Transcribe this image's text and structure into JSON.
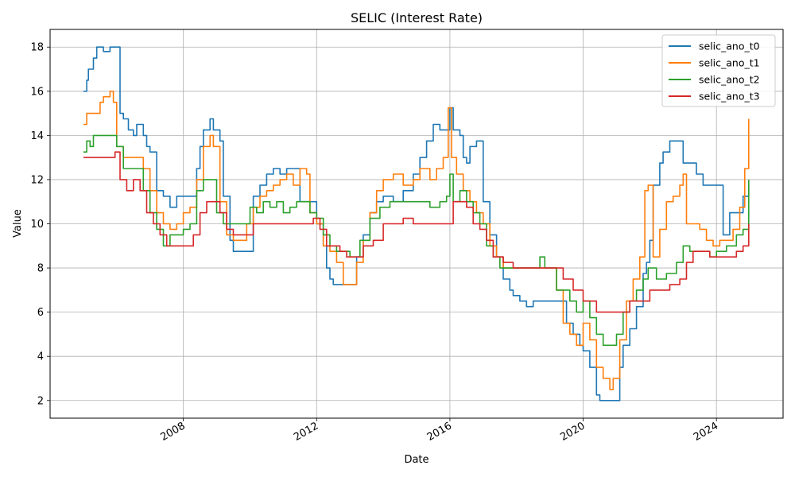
{
  "chart_data": {
    "type": "line",
    "title": "SELIC (Interest Rate)",
    "xlabel": "Date",
    "ylabel": "Value",
    "xlim": [
      2004.0,
      2026.0
    ],
    "ylim": [
      1.2,
      18.8
    ],
    "xticks": [
      2008,
      2012,
      2016,
      2020,
      2024
    ],
    "xtick_labels": [
      "2008",
      "2012",
      "2016",
      "2020",
      "2024"
    ],
    "yticks": [
      2,
      4,
      6,
      8,
      10,
      12,
      14,
      16,
      18
    ],
    "ytick_labels": [
      "2",
      "4",
      "6",
      "8",
      "10",
      "12",
      "14",
      "16",
      "18"
    ],
    "grid": true,
    "legend_position": "top-right",
    "series": [
      {
        "name": "selic_ano_t0",
        "color": "#1f77b4",
        "x": [
          2005.0,
          2005.1,
          2005.15,
          2005.2,
          2005.3,
          2005.4,
          2005.5,
          2005.6,
          2005.8,
          2006.0,
          2006.1,
          2006.2,
          2006.35,
          2006.5,
          2006.6,
          2006.8,
          2006.9,
          2007.0,
          2007.2,
          2007.4,
          2007.6,
          2007.8,
          2008.0,
          2008.2,
          2008.4,
          2008.5,
          2008.6,
          2008.8,
          2008.9,
          2009.1,
          2009.2,
          2009.4,
          2009.5,
          2009.7,
          2009.9,
          2010.1,
          2010.3,
          2010.5,
          2010.7,
          2010.9,
          2011.1,
          2011.3,
          2011.5,
          2011.7,
          2011.8,
          2012.0,
          2012.2,
          2012.3,
          2012.4,
          2012.5,
          2012.7,
          2012.9,
          2013.2,
          2013.4,
          2013.6,
          2013.8,
          2014.0,
          2014.3,
          2014.6,
          2014.9,
          2015.1,
          2015.3,
          2015.5,
          2015.7,
          2015.9,
          2016.0,
          2016.1,
          2016.3,
          2016.4,
          2016.5,
          2016.6,
          2016.8,
          2016.9,
          2017.0,
          2017.2,
          2017.4,
          2017.6,
          2017.8,
          2017.9,
          2018.1,
          2018.3,
          2018.5,
          2018.7,
          2019.0,
          2019.2,
          2019.3,
          2019.5,
          2019.7,
          2019.9,
          2020.0,
          2020.2,
          2020.4,
          2020.5,
          2020.7,
          2020.9,
          2021.0,
          2021.1,
          2021.2,
          2021.4,
          2021.6,
          2021.8,
          2021.9,
          2022.0,
          2022.1,
          2022.3,
          2022.4,
          2022.6,
          2022.8,
          2022.9,
          2023.0,
          2023.2,
          2023.4,
          2023.6,
          2023.8,
          2024.0,
          2024.2,
          2024.4,
          2024.6,
          2024.8,
          2024.97
        ],
        "values": [
          16.0,
          16.5,
          17.0,
          17.0,
          17.5,
          18.0,
          18.0,
          17.8,
          18.0,
          18.0,
          15.0,
          14.75,
          14.25,
          14.0,
          14.5,
          14.0,
          13.5,
          13.25,
          11.5,
          11.25,
          10.75,
          11.25,
          11.25,
          11.25,
          12.5,
          13.5,
          14.25,
          14.75,
          14.25,
          13.75,
          11.25,
          9.25,
          8.75,
          8.75,
          8.75,
          11.25,
          11.75,
          12.25,
          12.5,
          12.25,
          12.5,
          12.5,
          11.0,
          11.0,
          11.0,
          10.0,
          9.0,
          8.0,
          7.5,
          7.25,
          7.25,
          7.25,
          8.5,
          9.5,
          10.5,
          11.0,
          11.25,
          11.0,
          11.5,
          12.25,
          13.0,
          13.75,
          14.5,
          14.25,
          14.25,
          15.25,
          14.25,
          14.0,
          13.0,
          12.75,
          13.5,
          13.75,
          13.75,
          11.0,
          9.5,
          8.5,
          7.5,
          7.0,
          6.75,
          6.5,
          6.25,
          6.5,
          6.5,
          6.5,
          6.5,
          6.5,
          5.5,
          5.0,
          4.5,
          4.25,
          3.5,
          2.25,
          2.0,
          2.0,
          2.0,
          2.0,
          3.5,
          4.5,
          5.25,
          6.25,
          7.75,
          8.25,
          9.25,
          11.75,
          12.75,
          13.25,
          13.75,
          13.75,
          13.75,
          12.75,
          12.75,
          12.25,
          11.75,
          11.75,
          11.75,
          9.5,
          10.5,
          10.5,
          11.25,
          11.75
        ]
      },
      {
        "name": "selic_ano_t1",
        "color": "#ff7f0e",
        "x": [
          2005.0,
          2005.1,
          2005.3,
          2005.5,
          2005.6,
          2005.8,
          2005.9,
          2006.0,
          2006.2,
          2006.4,
          2006.6,
          2006.8,
          2007.0,
          2007.2,
          2007.4,
          2007.6,
          2007.8,
          2008.0,
          2008.2,
          2008.4,
          2008.6,
          2008.8,
          2008.9,
          2009.1,
          2009.3,
          2009.5,
          2009.7,
          2009.9,
          2010.1,
          2010.3,
          2010.5,
          2010.7,
          2010.9,
          2011.1,
          2011.3,
          2011.5,
          2011.7,
          2011.8,
          2012.0,
          2012.2,
          2012.4,
          2012.6,
          2012.8,
          2013.0,
          2013.2,
          2013.4,
          2013.6,
          2013.8,
          2014.0,
          2014.3,
          2014.6,
          2014.9,
          2015.1,
          2015.4,
          2015.6,
          2015.8,
          2015.95,
          2016.05,
          2016.2,
          2016.4,
          2016.6,
          2016.8,
          2017.0,
          2017.2,
          2017.4,
          2017.6,
          2017.9,
          2018.2,
          2018.5,
          2018.8,
          2019.0,
          2019.2,
          2019.4,
          2019.6,
          2019.8,
          2020.0,
          2020.2,
          2020.4,
          2020.6,
          2020.8,
          2020.9,
          2021.1,
          2021.3,
          2021.5,
          2021.7,
          2021.85,
          2021.95,
          2022.1,
          2022.3,
          2022.5,
          2022.7,
          2022.9,
          2023.0,
          2023.1,
          2023.3,
          2023.5,
          2023.7,
          2023.9,
          2024.1,
          2024.3,
          2024.5,
          2024.7,
          2024.85,
          2024.97
        ],
        "values": [
          14.5,
          15.0,
          15.0,
          15.5,
          15.75,
          16.0,
          15.5,
          13.5,
          13.0,
          13.0,
          13.0,
          12.5,
          11.5,
          10.5,
          10.0,
          9.75,
          10.0,
          10.5,
          10.75,
          12.0,
          13.5,
          14.0,
          13.5,
          11.0,
          9.5,
          9.25,
          9.25,
          10.0,
          10.75,
          11.25,
          11.5,
          11.75,
          12.0,
          12.25,
          11.75,
          12.5,
          12.25,
          10.5,
          10.0,
          9.0,
          8.75,
          8.25,
          7.25,
          7.25,
          8.25,
          9.25,
          10.5,
          11.5,
          12.0,
          12.25,
          11.75,
          12.0,
          12.5,
          12.0,
          12.5,
          13.0,
          15.25,
          13.0,
          12.25,
          11.5,
          11.0,
          10.5,
          10.0,
          9.0,
          8.5,
          8.0,
          8.0,
          8.0,
          8.0,
          8.0,
          8.0,
          7.0,
          5.5,
          5.0,
          4.5,
          5.5,
          4.75,
          3.5,
          3.0,
          2.5,
          3.0,
          4.75,
          6.5,
          7.5,
          8.5,
          11.5,
          11.75,
          8.5,
          9.75,
          11.0,
          11.25,
          11.75,
          12.25,
          10.0,
          10.0,
          9.75,
          9.25,
          9.0,
          9.25,
          9.25,
          9.75,
          10.75,
          12.5,
          14.75
        ]
      },
      {
        "name": "selic_ano_t2",
        "color": "#2ca02c",
        "x": [
          2005.0,
          2005.1,
          2005.2,
          2005.3,
          2005.5,
          2005.7,
          2005.9,
          2006.0,
          2006.2,
          2006.4,
          2006.6,
          2006.8,
          2007.0,
          2007.2,
          2007.4,
          2007.6,
          2007.8,
          2008.0,
          2008.2,
          2008.4,
          2008.6,
          2008.8,
          2009.0,
          2009.2,
          2009.4,
          2009.6,
          2009.8,
          2010.0,
          2010.2,
          2010.4,
          2010.6,
          2010.8,
          2011.0,
          2011.2,
          2011.4,
          2011.6,
          2011.8,
          2012.0,
          2012.2,
          2012.4,
          2012.6,
          2012.8,
          2013.0,
          2013.3,
          2013.6,
          2013.9,
          2014.2,
          2014.5,
          2014.8,
          2015.1,
          2015.4,
          2015.7,
          2015.9,
          2016.0,
          2016.1,
          2016.3,
          2016.5,
          2016.7,
          2016.9,
          2017.1,
          2017.3,
          2017.5,
          2017.8,
          2018.1,
          2018.4,
          2018.7,
          2018.85,
          2019.0,
          2019.2,
          2019.4,
          2019.6,
          2019.8,
          2020.0,
          2020.2,
          2020.4,
          2020.6,
          2020.8,
          2021.0,
          2021.2,
          2021.4,
          2021.6,
          2021.8,
          2021.95,
          2022.2,
          2022.5,
          2022.8,
          2023.0,
          2023.2,
          2023.5,
          2023.8,
          2024.0,
          2024.3,
          2024.6,
          2024.8,
          2024.97
        ],
        "values": [
          13.25,
          13.75,
          13.5,
          14.0,
          14.0,
          14.0,
          14.0,
          13.5,
          12.5,
          12.5,
          12.5,
          11.5,
          10.5,
          9.75,
          9.0,
          9.5,
          9.5,
          9.75,
          10.0,
          11.5,
          12.0,
          12.0,
          10.5,
          10.0,
          10.0,
          10.0,
          10.0,
          10.75,
          10.5,
          11.0,
          10.75,
          11.0,
          10.5,
          10.75,
          11.0,
          11.0,
          10.5,
          10.25,
          9.5,
          9.0,
          8.75,
          8.75,
          8.5,
          9.25,
          10.25,
          10.75,
          11.0,
          11.0,
          11.0,
          11.0,
          10.75,
          11.0,
          11.25,
          12.25,
          11.0,
          11.5,
          11.0,
          10.5,
          10.0,
          9.0,
          8.5,
          8.0,
          8.0,
          8.0,
          8.0,
          8.5,
          8.0,
          8.0,
          7.0,
          7.0,
          6.5,
          6.0,
          6.5,
          5.75,
          5.0,
          4.5,
          4.5,
          5.0,
          6.0,
          6.5,
          7.0,
          7.5,
          8.0,
          7.5,
          7.75,
          8.25,
          9.0,
          8.75,
          8.75,
          8.5,
          8.75,
          9.0,
          9.5,
          9.75,
          12.0
        ]
      },
      {
        "name": "selic_ano_t3",
        "color": "#d62728",
        "x": [
          2005.0,
          2005.3,
          2005.6,
          2005.8,
          2005.95,
          2006.1,
          2006.3,
          2006.5,
          2006.7,
          2006.9,
          2007.1,
          2007.3,
          2007.5,
          2007.7,
          2007.9,
          2008.1,
          2008.3,
          2008.5,
          2008.7,
          2008.9,
          2009.1,
          2009.3,
          2009.5,
          2009.7,
          2009.9,
          2010.1,
          2010.4,
          2010.7,
          2011.0,
          2011.3,
          2011.6,
          2011.9,
          2012.1,
          2012.3,
          2012.5,
          2012.7,
          2012.9,
          2013.1,
          2013.4,
          2013.7,
          2014.0,
          2014.3,
          2014.6,
          2014.9,
          2015.2,
          2015.5,
          2015.8,
          2015.95,
          2016.1,
          2016.3,
          2016.5,
          2016.7,
          2016.9,
          2017.1,
          2017.3,
          2017.6,
          2017.9,
          2018.2,
          2018.5,
          2018.8,
          2019.1,
          2019.4,
          2019.7,
          2020.0,
          2020.2,
          2020.4,
          2020.6,
          2020.8,
          2021.0,
          2021.2,
          2021.4,
          2021.6,
          2021.8,
          2022.0,
          2022.3,
          2022.6,
          2022.9,
          2023.1,
          2023.3,
          2023.5,
          2023.8,
          2024.0,
          2024.3,
          2024.6,
          2024.8,
          2024.97
        ],
        "values": [
          13.0,
          13.0,
          13.0,
          13.0,
          13.25,
          12.0,
          11.5,
          12.0,
          11.5,
          10.5,
          10.0,
          9.5,
          9.0,
          9.0,
          9.0,
          9.0,
          9.5,
          10.5,
          11.0,
          11.0,
          10.5,
          9.75,
          9.5,
          9.5,
          9.5,
          10.0,
          10.0,
          10.0,
          10.0,
          10.0,
          10.0,
          10.25,
          9.75,
          9.0,
          9.0,
          8.75,
          8.5,
          8.5,
          9.0,
          9.25,
          10.0,
          10.0,
          10.25,
          10.0,
          10.0,
          10.0,
          10.0,
          10.0,
          11.0,
          11.0,
          10.75,
          10.0,
          9.75,
          9.25,
          8.5,
          8.25,
          8.0,
          8.0,
          8.0,
          8.0,
          8.0,
          7.5,
          7.0,
          6.5,
          6.5,
          6.0,
          6.0,
          6.0,
          6.0,
          6.0,
          6.5,
          6.5,
          6.5,
          7.0,
          7.0,
          7.25,
          7.5,
          8.25,
          8.75,
          8.75,
          8.5,
          8.5,
          8.5,
          8.75,
          9.0,
          10.0
        ]
      }
    ]
  }
}
